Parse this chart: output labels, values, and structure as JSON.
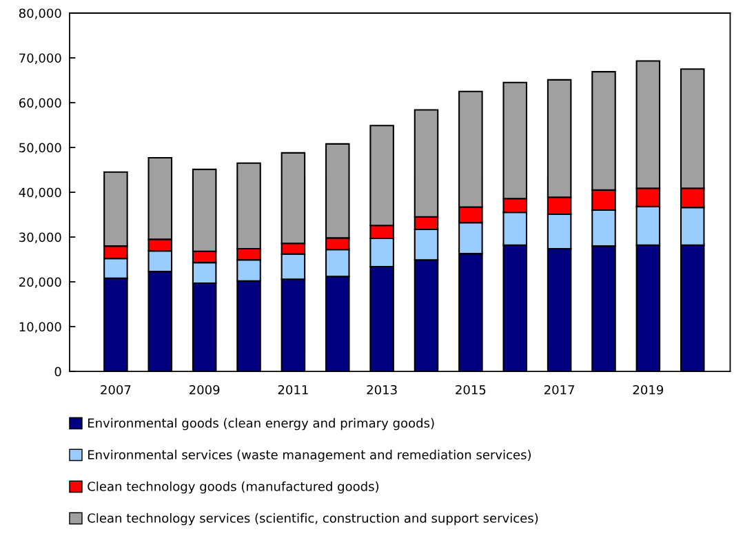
{
  "chart_data": {
    "type": "bar",
    "stacked": true,
    "categories": [
      "2007",
      null,
      "2009",
      null,
      "2011",
      null,
      "2013",
      null,
      "2015",
      null,
      "2017",
      null,
      "2019",
      null
    ],
    "series": [
      {
        "name": "Environmental goods (clean energy and primary goods)",
        "color": "#000080",
        "values": [
          20800,
          22300,
          19700,
          20200,
          20600,
          21200,
          23400,
          24900,
          26300,
          28200,
          27400,
          28000,
          28200,
          28200
        ]
      },
      {
        "name": "Environmental services (waste management and remediation services)",
        "color": "#99ccff",
        "values": [
          4400,
          4600,
          4600,
          4700,
          5600,
          6000,
          6300,
          6800,
          6900,
          7300,
          7700,
          8000,
          8600,
          8400
        ]
      },
      {
        "name": "Clean technology goods (manufactured goods)",
        "color": "#ff0000",
        "values": [
          2800,
          2600,
          2500,
          2500,
          2400,
          2600,
          2900,
          2800,
          3500,
          3100,
          3800,
          4500,
          4100,
          4300
        ]
      },
      {
        "name": "Clean technology services (scientific, construction and support services)",
        "color": "#a0a0a0",
        "values": [
          16500,
          18200,
          18300,
          19100,
          20200,
          21000,
          22300,
          23900,
          25800,
          25900,
          26200,
          26400,
          28400,
          26600
        ]
      }
    ],
    "ylim": [
      0,
      80000
    ],
    "yticks": [
      {
        "value": 0,
        "label": "0"
      },
      {
        "value": 10000,
        "label": "10,000"
      },
      {
        "value": 20000,
        "label": "20,000"
      },
      {
        "value": 30000,
        "label": "30,000"
      },
      {
        "value": 40000,
        "label": "40,000"
      },
      {
        "value": 50000,
        "label": "50,000"
      },
      {
        "value": 60000,
        "label": "60,000"
      },
      {
        "value": 70000,
        "label": "70,000"
      },
      {
        "value": 80000,
        "label": "80,000"
      }
    ],
    "grid": false,
    "legend": "bottom"
  }
}
